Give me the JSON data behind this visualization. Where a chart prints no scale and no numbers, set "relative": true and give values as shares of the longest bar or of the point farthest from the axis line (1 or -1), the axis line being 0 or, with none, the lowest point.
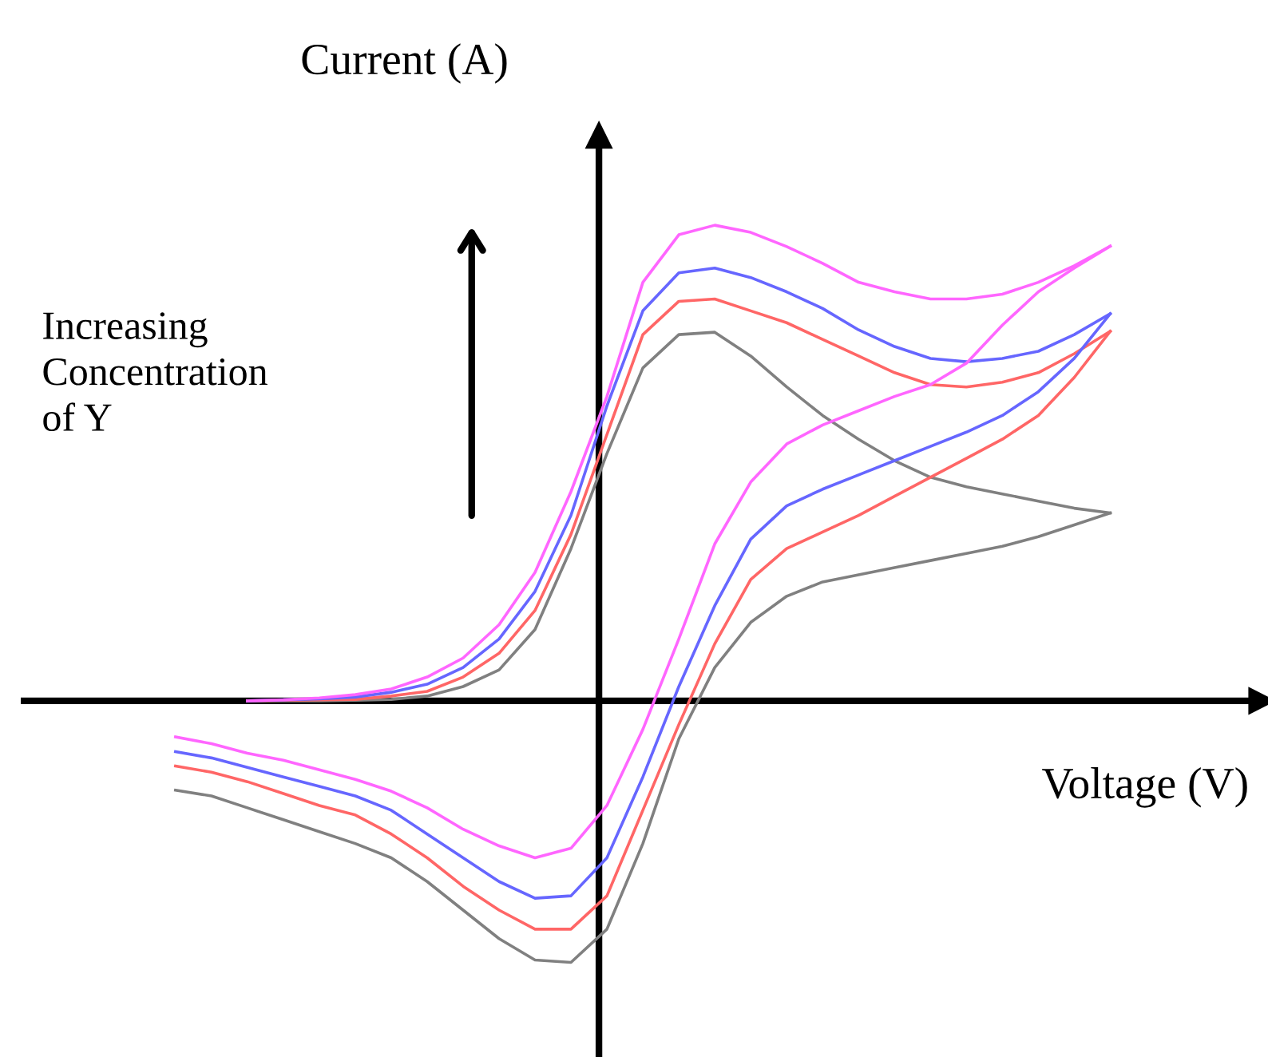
{
  "chart_data": {
    "type": "line",
    "relative": true,
    "xlabel": "Voltage (V)",
    "ylabel": "Current (A)",
    "annotations": [
      "Increasing\nConcentration\nof Y"
    ],
    "marker": "none",
    "line_style": "solid",
    "categories": [
      null,
      null,
      null,
      null,
      null,
      null,
      null,
      null,
      null,
      null,
      null,
      null,
      null,
      null,
      null,
      null,
      null,
      null,
      null,
      null,
      null,
      null,
      null,
      null,
      null,
      null,
      null
    ],
    "series": [
      {
        "color": "#808080",
        "values": [
          -0.188,
          -0.2,
          -0.225,
          -0.25,
          -0.275,
          -0.3,
          -0.33,
          -0.38,
          -0.44,
          -0.5,
          -0.545,
          -0.55,
          -0.48,
          -0.3,
          -0.08,
          0.07,
          0.165,
          0.22,
          0.25,
          0.265,
          0.28,
          0.295,
          0.31,
          0.325,
          0.345,
          0.37,
          0.395
        ]
      },
      {
        "color": "#808080",
        "values": [
          null,
          null,
          0,
          0,
          0,
          0.001,
          0.003,
          0.01,
          0.03,
          0.065,
          0.15,
          0.32,
          0.52,
          0.7,
          0.77,
          0.775,
          0.725,
          0.66,
          0.6,
          0.55,
          0.505,
          0.47,
          0.45,
          0.435,
          0.42,
          0.405,
          0.395
        ]
      },
      {
        "color": "#ff6666",
        "values": [
          -0.137,
          -0.15,
          -0.17,
          -0.195,
          -0.22,
          -0.24,
          -0.28,
          -0.33,
          -0.39,
          -0.44,
          -0.48,
          -0.48,
          -0.41,
          -0.23,
          -0.05,
          0.12,
          0.255,
          0.32,
          0.355,
          0.39,
          0.43,
          0.47,
          0.51,
          0.55,
          0.6,
          0.68,
          0.777
        ]
      },
      {
        "color": "#ff6666",
        "values": [
          null,
          null,
          0,
          0.001,
          0.002,
          0.003,
          0.01,
          0.02,
          0.05,
          0.1,
          0.19,
          0.35,
          0.56,
          0.77,
          0.84,
          0.845,
          0.82,
          0.795,
          0.76,
          0.725,
          0.69,
          0.665,
          0.66,
          0.67,
          0.69,
          0.73,
          0.777
        ]
      },
      {
        "color": "#6666ff",
        "values": [
          -0.107,
          -0.12,
          -0.14,
          -0.16,
          -0.18,
          -0.2,
          -0.23,
          -0.28,
          -0.33,
          -0.38,
          -0.415,
          -0.41,
          -0.33,
          -0.16,
          0.03,
          0.2,
          0.34,
          0.41,
          0.445,
          0.475,
          0.505,
          0.535,
          0.565,
          0.6,
          0.65,
          0.72,
          0.814
        ]
      },
      {
        "color": "#6666ff",
        "values": [
          null,
          null,
          0,
          0.002,
          0.004,
          0.008,
          0.018,
          0.035,
          0.07,
          0.13,
          0.23,
          0.39,
          0.62,
          0.82,
          0.9,
          0.91,
          0.89,
          0.86,
          0.825,
          0.78,
          0.745,
          0.72,
          0.713,
          0.72,
          0.735,
          0.77,
          0.814
        ]
      },
      {
        "color": "#ff66ff",
        "values": [
          -0.076,
          -0.09,
          -0.11,
          -0.125,
          -0.145,
          -0.165,
          -0.19,
          -0.225,
          -0.27,
          -0.305,
          -0.33,
          -0.31,
          -0.22,
          -0.06,
          0.13,
          0.33,
          0.46,
          0.54,
          0.58,
          0.61,
          0.64,
          0.665,
          0.71,
          0.79,
          0.86,
          0.91,
          0.956
        ]
      },
      {
        "color": "#ff66ff",
        "values": [
          null,
          null,
          0,
          0.002,
          0.006,
          0.013,
          0.025,
          0.05,
          0.09,
          0.16,
          0.27,
          0.44,
          0.64,
          0.88,
          0.98,
          1.0,
          0.985,
          0.955,
          0.92,
          0.88,
          0.86,
          0.845,
          0.845,
          0.855,
          0.88,
          0.915,
          0.956
        ]
      }
    ]
  }
}
